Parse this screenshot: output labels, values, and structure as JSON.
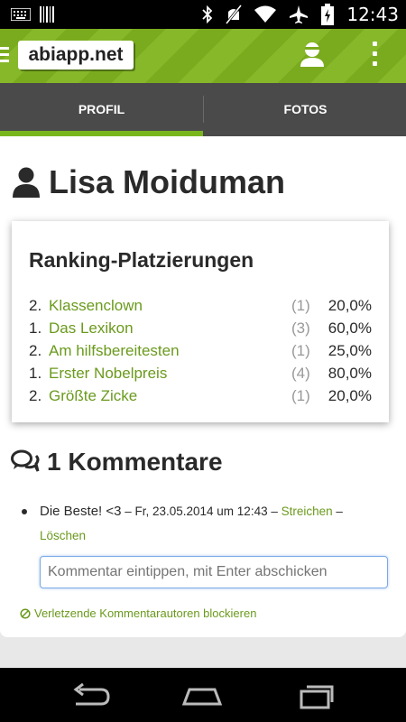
{
  "status_bar": {
    "time": "12:43",
    "icons": [
      "keyboard-icon",
      "barcode-icon",
      "bluetooth-icon",
      "mute-icon",
      "wifi-icon",
      "airplane-icon",
      "battery-icon"
    ]
  },
  "app_bar": {
    "logo_text": "abiapp.net",
    "icons": [
      "menu-icon",
      "user-icon",
      "overflow-icon"
    ],
    "accent_color": "#7aab1f"
  },
  "tabs": [
    {
      "label": "PROFIL",
      "selected": true
    },
    {
      "label": "FOTOS",
      "selected": false
    }
  ],
  "profile": {
    "name": "Lisa Moiduman"
  },
  "ranking": {
    "title": "Ranking-Platzierungen",
    "items": [
      {
        "position": "2.",
        "category": "Klassenclown",
        "count": "(1)",
        "percent": "20,0%"
      },
      {
        "position": "1.",
        "category": "Das Lexikon",
        "count": "(3)",
        "percent": "60,0%"
      },
      {
        "position": "2.",
        "category": "Am hilfsbereitesten",
        "count": "(1)",
        "percent": "25,0%"
      },
      {
        "position": "1.",
        "category": "Erster Nobelpreis",
        "count": "(4)",
        "percent": "80,0%"
      },
      {
        "position": "2.",
        "category": "Größte Zicke",
        "count": "(1)",
        "percent": "20,0%"
      }
    ]
  },
  "comments": {
    "title": "1 Kommentare",
    "items": [
      {
        "text": "Die Beste! <3",
        "dash1": " – ",
        "date": "Fr, 23.05.2014 um 12:43",
        "dash2": " – ",
        "strike_label": "Streichen",
        "dash3": " – ",
        "delete_label": "Löschen"
      }
    ],
    "input_placeholder": "Kommentar eintippen, mit Enter abschicken",
    "block_label": "Verletzende Kommentarautoren blockieren"
  },
  "nav_bar": {
    "icons": [
      "back-icon",
      "home-icon",
      "recent-apps-icon"
    ]
  }
}
